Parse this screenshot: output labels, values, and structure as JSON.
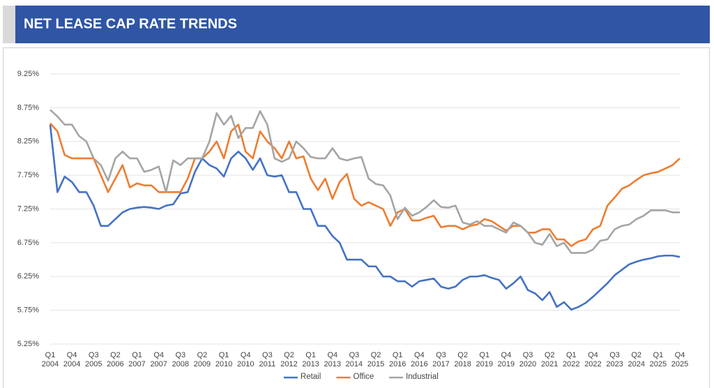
{
  "chart_data": {
    "type": "line",
    "title": "NET LEASE CAP RATE TRENDS",
    "categories": [
      "Q1 2004",
      null,
      null,
      "Q4 2004",
      null,
      null,
      "Q3 2005",
      null,
      null,
      "Q2 2006",
      null,
      null,
      "Q1 2007",
      null,
      null,
      "Q4 2007",
      null,
      null,
      "Q3 2008",
      null,
      null,
      "Q2 2009",
      null,
      null,
      "Q1 2010",
      null,
      null,
      "Q4 2010",
      null,
      null,
      "Q3 2011",
      null,
      null,
      "Q2 2012",
      null,
      null,
      "Q1 2013",
      null,
      null,
      "Q4 2013",
      null,
      null,
      "Q3 2014",
      null,
      null,
      "Q2 2015",
      null,
      null,
      "Q1 2016",
      null,
      null,
      "Q4 2016",
      null,
      null,
      "Q3 2017",
      null,
      null,
      "Q2 2018",
      null,
      null,
      "Q1 2019",
      null,
      null,
      "Q4 2019",
      null,
      null,
      "Q3 2020",
      null,
      null,
      "Q2 2021",
      null,
      null,
      "Q1 2022",
      null,
      null,
      "Q4 2022",
      null,
      null,
      "Q3 2023",
      null,
      null,
      "Q2 2024",
      null,
      null,
      "Q1 2025",
      null,
      null,
      "Q4 2025"
    ],
    "series": [
      {
        "name": "Retail",
        "color": "#4472c4",
        "values": [
          8.5,
          7.5,
          7.73,
          7.65,
          7.5,
          7.5,
          7.3,
          7.0,
          7.0,
          7.1,
          7.2,
          7.25,
          7.27,
          7.28,
          7.27,
          7.25,
          7.3,
          7.32,
          7.48,
          7.5,
          7.8,
          8.0,
          7.9,
          7.85,
          7.73,
          8.0,
          8.1,
          8.0,
          7.83,
          8.0,
          7.75,
          7.73,
          7.75,
          7.5,
          7.5,
          7.25,
          7.25,
          7.0,
          7.0,
          6.85,
          6.75,
          6.5,
          6.5,
          6.5,
          6.4,
          6.4,
          6.25,
          6.25,
          6.18,
          6.18,
          6.1,
          6.18,
          6.2,
          6.22,
          6.1,
          6.07,
          6.1,
          6.2,
          6.25,
          6.25,
          6.27,
          6.23,
          6.2,
          6.07,
          6.15,
          6.25,
          6.05,
          6.0,
          5.9,
          6.02,
          5.8,
          5.87,
          5.76,
          5.8,
          5.86,
          5.95,
          6.05,
          6.15,
          6.27,
          6.35,
          6.43,
          6.47,
          6.5,
          6.52,
          6.55,
          6.56,
          6.56,
          6.54
        ]
      },
      {
        "name": "Office",
        "color": "#ed7d31",
        "values": [
          8.52,
          8.4,
          8.05,
          8.0,
          8.0,
          8.0,
          8.0,
          7.75,
          7.5,
          7.7,
          7.9,
          7.57,
          7.63,
          7.6,
          7.6,
          7.5,
          7.5,
          7.5,
          7.5,
          7.7,
          8.0,
          8.0,
          8.1,
          8.25,
          8.0,
          8.4,
          8.5,
          8.1,
          8.0,
          8.4,
          8.25,
          8.15,
          8.0,
          8.25,
          8.0,
          8.03,
          7.7,
          7.53,
          7.7,
          7.4,
          7.65,
          7.77,
          7.4,
          7.3,
          7.35,
          7.3,
          7.25,
          7.0,
          7.2,
          7.25,
          7.08,
          7.08,
          7.12,
          7.15,
          6.98,
          7.0,
          7.0,
          6.95,
          7.0,
          7.02,
          7.1,
          7.07,
          7.0,
          6.93,
          7.0,
          7.0,
          6.9,
          6.9,
          6.95,
          6.95,
          6.8,
          6.8,
          6.7,
          6.77,
          6.8,
          6.95,
          7.0,
          7.3,
          7.42,
          7.55,
          7.6,
          7.68,
          7.75,
          7.78,
          7.8,
          7.85,
          7.9,
          8.0
        ]
      },
      {
        "name": "Industrial",
        "color": "#a5a5a5",
        "values": [
          8.72,
          8.62,
          8.5,
          8.5,
          8.33,
          8.25,
          8.0,
          7.9,
          7.67,
          8.0,
          8.1,
          8.0,
          8.0,
          7.8,
          7.83,
          7.88,
          7.5,
          7.97,
          7.9,
          8.0,
          8.0,
          8.0,
          8.25,
          8.67,
          8.5,
          8.63,
          8.3,
          8.45,
          8.45,
          8.7,
          8.5,
          8.0,
          7.95,
          8.0,
          8.25,
          8.15,
          8.02,
          8.0,
          8.0,
          8.15,
          8.0,
          7.97,
          8.0,
          8.02,
          7.7,
          7.62,
          7.6,
          7.45,
          7.1,
          7.27,
          7.15,
          7.2,
          7.28,
          7.38,
          7.28,
          7.27,
          7.3,
          7.05,
          7.02,
          7.07,
          7.0,
          7.0,
          6.95,
          6.9,
          7.05,
          7.0,
          6.9,
          6.75,
          6.72,
          6.88,
          6.7,
          6.75,
          6.6,
          6.6,
          6.6,
          6.65,
          6.78,
          6.8,
          6.95,
          7.0,
          7.02,
          7.1,
          7.15,
          7.23,
          7.23,
          7.23,
          7.2,
          7.2
        ]
      }
    ],
    "ylim": [
      5.25,
      9.25
    ],
    "yticks": [
      {
        "value": 5.25,
        "label": "5.25%"
      },
      {
        "value": 5.75,
        "label": "5.75%"
      },
      {
        "value": 6.25,
        "label": "6.25%"
      },
      {
        "value": 6.75,
        "label": "6.75%"
      },
      {
        "value": 7.25,
        "label": "7.25%"
      },
      {
        "value": 7.75,
        "label": "7.75%"
      },
      {
        "value": 8.25,
        "label": "8.25%"
      },
      {
        "value": 8.75,
        "label": "8.75%"
      },
      {
        "value": 9.25,
        "label": "9.25%"
      }
    ],
    "grid": true,
    "legend": "bottom"
  }
}
